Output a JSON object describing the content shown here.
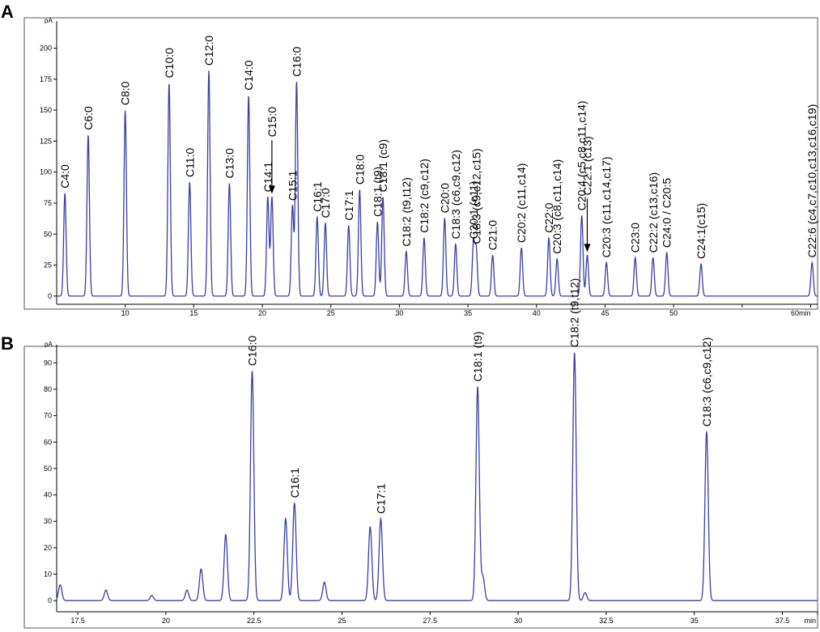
{
  "chart_data": [
    {
      "panel": "A",
      "type": "line",
      "y_unit": "pA",
      "x_unit": "min",
      "xlim": [
        5,
        60.5
      ],
      "ylim": [
        -4,
        218
      ],
      "x_ticks": [
        10,
        15,
        20,
        25,
        30,
        35,
        40,
        45,
        50,
        55
      ],
      "x_tick_labels": [
        "10",
        "15",
        "20",
        "25",
        "30",
        "35",
        "40",
        "45",
        "50",
        ""
      ],
      "end_tick": {
        "x": 60,
        "label": "60min"
      },
      "y_ticks": [
        0,
        25,
        50,
        75,
        100,
        125,
        150,
        175,
        200
      ],
      "peaks": [
        {
          "x": 5.6,
          "y": 83,
          "label": "C4:0"
        },
        {
          "x": 7.3,
          "y": 130,
          "label": "C6:0"
        },
        {
          "x": 10.0,
          "y": 150,
          "label": "C8:0"
        },
        {
          "x": 13.2,
          "y": 172,
          "label": "C10:0"
        },
        {
          "x": 14.7,
          "y": 92,
          "label": "C11:0"
        },
        {
          "x": 16.1,
          "y": 182,
          "label": "C12:0"
        },
        {
          "x": 17.6,
          "y": 91,
          "label": "C13:0"
        },
        {
          "x": 19.0,
          "y": 162,
          "label": "C14:0"
        },
        {
          "x": 20.4,
          "y": 80,
          "label": "C14:1"
        },
        {
          "x": 20.7,
          "y": 80,
          "label": "C15:0",
          "arrow": true
        },
        {
          "x": 22.2,
          "y": 73,
          "label": "C15:1"
        },
        {
          "x": 22.5,
          "y": 173,
          "label": "C16:0"
        },
        {
          "x": 24.0,
          "y": 64,
          "label": "C16:1"
        },
        {
          "x": 24.6,
          "y": 59,
          "label": "C17:0"
        },
        {
          "x": 26.3,
          "y": 57,
          "label": "C17:1"
        },
        {
          "x": 27.1,
          "y": 86,
          "label": "C18:0"
        },
        {
          "x": 28.4,
          "y": 60,
          "label": "C18:1 (t9)"
        },
        {
          "x": 28.8,
          "y": 80,
          "label": "C18:1 (c9)"
        },
        {
          "x": 30.5,
          "y": 36,
          "label": "C18:2 (t9,t12)"
        },
        {
          "x": 31.8,
          "y": 47,
          "label": "C18:2 (c9,c12)"
        },
        {
          "x": 33.3,
          "y": 63,
          "label": "C20:0"
        },
        {
          "x": 34.1,
          "y": 42,
          "label": "C18:3 (c6,c9,c12)"
        },
        {
          "x": 35.4,
          "y": 42,
          "label": "C20:1 (c11)"
        },
        {
          "x": 35.6,
          "y": 38,
          "label": "C18:3 (c9,c12,c15)"
        },
        {
          "x": 36.8,
          "y": 33,
          "label": "C21:0"
        },
        {
          "x": 38.9,
          "y": 39,
          "label": "C20:2 (c11,c14)"
        },
        {
          "x": 40.9,
          "y": 47,
          "label": "C22:0"
        },
        {
          "x": 41.5,
          "y": 30,
          "label": "C20:3 (c8,c11,c14)"
        },
        {
          "x": 43.3,
          "y": 65,
          "label": "C20:4 (c5,c8,c11,c14)"
        },
        {
          "x": 43.7,
          "y": 33,
          "label": "C22:1 (c13)",
          "arrow": true
        },
        {
          "x": 45.1,
          "y": 27,
          "label": "C20:3 (c11,c14,c17)"
        },
        {
          "x": 47.2,
          "y": 31,
          "label": "C23:0"
        },
        {
          "x": 48.5,
          "y": 31,
          "label": "C22:2 (c13,c16)"
        },
        {
          "x": 49.5,
          "y": 35,
          "label": "C24:0 / C20:5"
        },
        {
          "x": 52.0,
          "y": 26,
          "label": "C24:1(c15)"
        },
        {
          "x": 60.1,
          "y": 27,
          "label": "C22:6 (c4,c7,c10,c13,c16,c19)"
        }
      ]
    },
    {
      "panel": "B",
      "type": "line",
      "y_unit": "pA",
      "x_unit": "min",
      "xlim": [
        16.9,
        38.5
      ],
      "ylim": [
        -3,
        95
      ],
      "x_ticks": [
        17.5,
        20,
        22.5,
        25,
        27.5,
        30,
        32.5,
        35,
        37.5
      ],
      "x_tick_labels": [
        "17.5",
        "20",
        "22.5",
        "25",
        "27.5",
        "30",
        "32.5",
        "35",
        "37.5"
      ],
      "end_tick": {
        "x": 38.5,
        "label": "min"
      },
      "y_ticks": [
        0,
        10,
        20,
        30,
        40,
        50,
        60,
        70,
        80,
        90
      ],
      "peaks": [
        {
          "x": 17.0,
          "y": 6
        },
        {
          "x": 18.3,
          "y": 4
        },
        {
          "x": 19.6,
          "y": 2
        },
        {
          "x": 20.6,
          "y": 4
        },
        {
          "x": 21.0,
          "y": 12
        },
        {
          "x": 21.7,
          "y": 25
        },
        {
          "x": 22.45,
          "y": 87,
          "label": "C16:0"
        },
        {
          "x": 23.4,
          "y": 31
        },
        {
          "x": 23.65,
          "y": 37,
          "label": "C16:1"
        },
        {
          "x": 24.5,
          "y": 7
        },
        {
          "x": 25.8,
          "y": 28
        },
        {
          "x": 26.1,
          "y": 31,
          "label": "C17:1"
        },
        {
          "x": 28.85,
          "y": 81,
          "label": "C18:1 (t9)"
        },
        {
          "x": 29.0,
          "y": 9
        },
        {
          "x": 31.6,
          "y": 94,
          "label": "C18:2 (t9,t12)"
        },
        {
          "x": 31.9,
          "y": 3
        },
        {
          "x": 35.35,
          "y": 64,
          "label": "C18:3 (c6,c9,c12)"
        }
      ]
    }
  ]
}
